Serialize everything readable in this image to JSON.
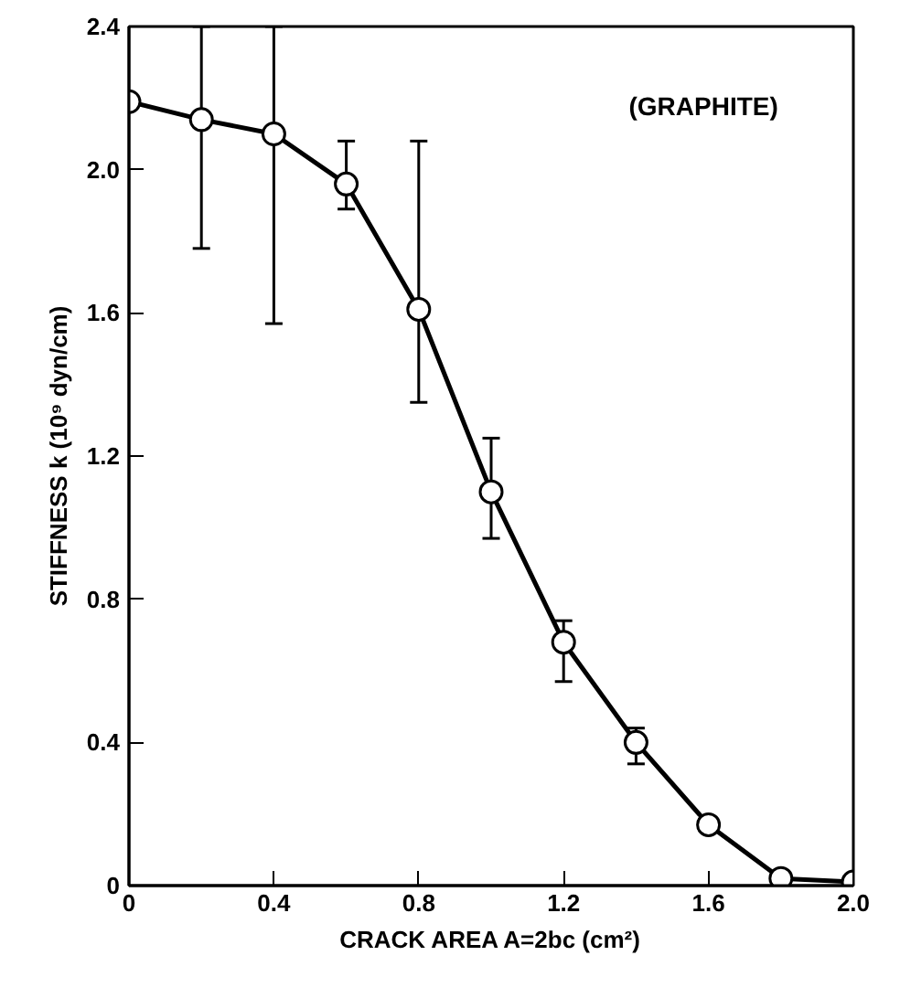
{
  "chart_data": {
    "type": "line",
    "xlabel": "CRACK AREA A=2bc (cm²)",
    "ylabel": "STIFFNESS k (10⁹ dyn/cm)",
    "annotations": [
      "(GRAPHITE)"
    ],
    "x": [
      0,
      0.2,
      0.4,
      0.6,
      0.8,
      1.0,
      1.2,
      1.4,
      1.6,
      1.8,
      2.0
    ],
    "series": [
      {
        "color": "#000000",
        "values": [
          2.19,
          2.14,
          2.1,
          1.96,
          1.61,
          1.1,
          0.68,
          0.4,
          0.17,
          0.02,
          0.01
        ],
        "errors": [
          null,
          [
            1.78,
            2.4
          ],
          [
            1.57,
            2.4
          ],
          [
            1.89,
            2.08
          ],
          [
            1.35,
            2.08
          ],
          [
            0.97,
            1.25
          ],
          [
            0.57,
            0.74
          ],
          [
            0.34,
            0.44
          ],
          null,
          null,
          null
        ]
      }
    ],
    "marker": "circle",
    "line_style": "solid",
    "grid": false,
    "xlim": [
      0,
      2.0
    ],
    "ylim": [
      0,
      2.4
    ],
    "xticks": [
      0,
      0.4,
      0.8,
      1.2,
      1.6,
      {
        "value": 2.0,
        "label": "2.0"
      }
    ],
    "yticks": [
      0,
      0.4,
      0.8,
      1.2,
      1.6,
      {
        "value": 2.0,
        "label": "2.0"
      },
      2.4
    ]
  }
}
